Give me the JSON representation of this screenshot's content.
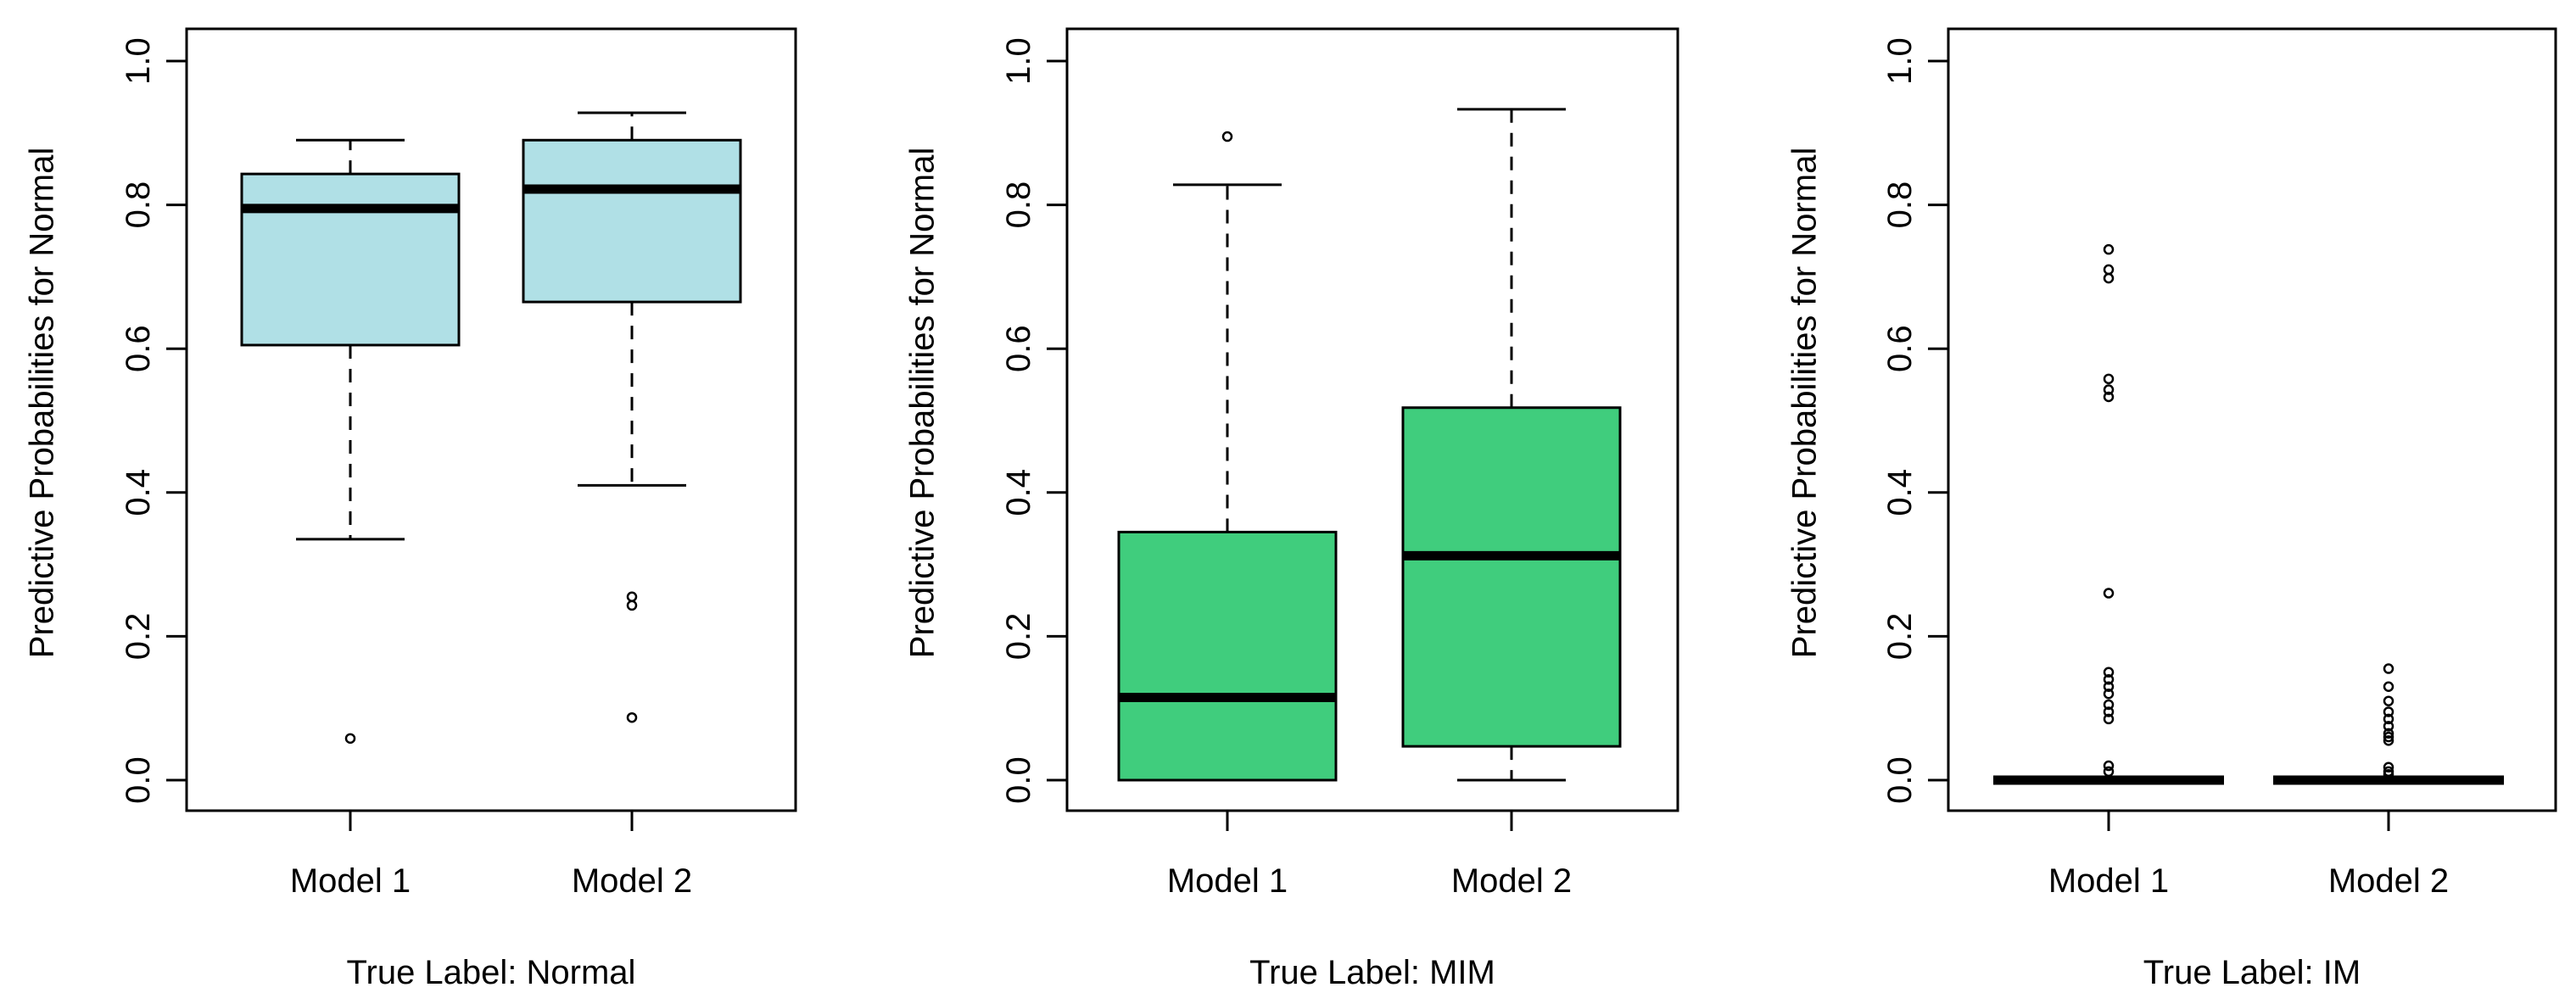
{
  "chart_data": [
    {
      "type": "box",
      "ylabel": "Predictive Probabilities for Normal",
      "xlabel": "True Label: Normal",
      "ylim": [
        0.0,
        1.0
      ],
      "yticks": [
        "0.0",
        "0.2",
        "0.4",
        "0.6",
        "0.8",
        "1.0"
      ],
      "categories": [
        "Model 1",
        "Model 2"
      ],
      "fill_color": "#b0e0e6",
      "boxes": [
        {
          "name": "Model 1",
          "whisker_low": 0.335,
          "q1": 0.605,
          "median": 0.795,
          "q3": 0.843,
          "whisker_high": 0.89,
          "outliers": [
            0.058
          ]
        },
        {
          "name": "Model 2",
          "whisker_low": 0.41,
          "q1": 0.665,
          "median": 0.822,
          "q3": 0.89,
          "whisker_high": 0.928,
          "outliers": [
            0.255,
            0.243,
            0.087
          ]
        }
      ]
    },
    {
      "type": "box",
      "ylabel": "Predictive Probabilities for Normal",
      "xlabel": "True Label: MIM",
      "ylim": [
        0.0,
        1.0
      ],
      "yticks": [
        "0.0",
        "0.2",
        "0.4",
        "0.6",
        "0.8",
        "1.0"
      ],
      "categories": [
        "Model 1",
        "Model 2"
      ],
      "fill_color": "#40cd7d",
      "boxes": [
        {
          "name": "Model 1",
          "whisker_low": 0.0,
          "q1": 0.0,
          "median": 0.115,
          "q3": 0.345,
          "whisker_high": 0.828,
          "outliers": [
            0.895
          ]
        },
        {
          "name": "Model 2",
          "whisker_low": 0.0,
          "q1": 0.047,
          "median": 0.312,
          "q3": 0.518,
          "whisker_high": 0.933,
          "outliers": []
        }
      ]
    },
    {
      "type": "box",
      "ylabel": "Predictive Probabilities for Normal",
      "xlabel": "True Label: IM",
      "ylim": [
        0.0,
        1.0
      ],
      "yticks": [
        "0.0",
        "0.2",
        "0.4",
        "0.6",
        "0.8",
        "1.0"
      ],
      "categories": [
        "Model 1",
        "Model 2"
      ],
      "fill_color": "#000000",
      "boxes": [
        {
          "name": "Model 1",
          "whisker_low": 0.0,
          "q1": 0.0,
          "median": 0.0,
          "q3": 0.0,
          "whisker_high": 0.0,
          "outliers": [
            0.738,
            0.71,
            0.698,
            0.558,
            0.543,
            0.533,
            0.26,
            0.15,
            0.14,
            0.13,
            0.12,
            0.105,
            0.095,
            0.085,
            0.02,
            0.012
          ]
        },
        {
          "name": "Model 2",
          "whisker_low": 0.0,
          "q1": 0.0,
          "median": 0.0,
          "q3": 0.0,
          "whisker_high": 0.0,
          "outliers": [
            0.155,
            0.13,
            0.11,
            0.095,
            0.085,
            0.075,
            0.065,
            0.06,
            0.055,
            0.018,
            0.012,
            0.008
          ]
        }
      ]
    }
  ]
}
